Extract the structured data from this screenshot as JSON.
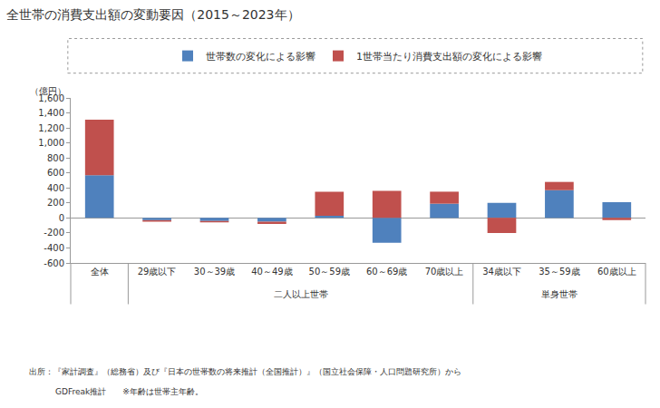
{
  "chart_data": {
    "type": "bar",
    "title": "全世帯の消費支出額の変動要因（2015～2023年）",
    "ylabel": "（億円）",
    "categories": [
      "全体",
      "29歳以下",
      "30～39歳",
      "40～49歳",
      "50～59歳",
      "60～69歳",
      "70歳以上",
      "34歳以下",
      "35～59歳",
      "60歳以上"
    ],
    "category_groups": [
      {
        "label": "二人以上世帯",
        "categories": [
          "29歳以下",
          "30～39歳",
          "40～49歳",
          "50～59歳",
          "60～69歳",
          "70歳以上"
        ]
      },
      {
        "label": "単身世帯",
        "categories": [
          "34歳以下",
          "35～59歳",
          "60歳以上"
        ]
      }
    ],
    "series": [
      {
        "name": "世帯数の変化による影響",
        "color": "#4f81bd",
        "values": [
          570,
          -30,
          -40,
          -50,
          30,
          -330,
          190,
          200,
          370,
          210
        ]
      },
      {
        "name": "1世帯当たり消費支出額の変化による影響",
        "color": "#c0504d",
        "values": [
          740,
          -20,
          -20,
          -30,
          320,
          360,
          160,
          -200,
          110,
          -30
        ]
      }
    ],
    "stacked": true,
    "ylim": [
      -600,
      1600
    ],
    "yticks": [
      -600,
      -400,
      -200,
      0,
      200,
      400,
      600,
      800,
      {
        "value": 1000,
        "label": "1,000"
      },
      {
        "value": 1200,
        "label": "1,200"
      },
      {
        "value": 1400,
        "label": "1,400"
      },
      {
        "value": 1600,
        "label": "1,600"
      }
    ],
    "grid": false,
    "legend": "top",
    "notes": [
      "出所：『家計調査』（総務省）及び『日本の世帯数の将来推計（全国推計）』（国立社会保障・人口問題研究所）から",
      "GDFreak推計　　※年齢は世帯主年齢。"
    ]
  }
}
